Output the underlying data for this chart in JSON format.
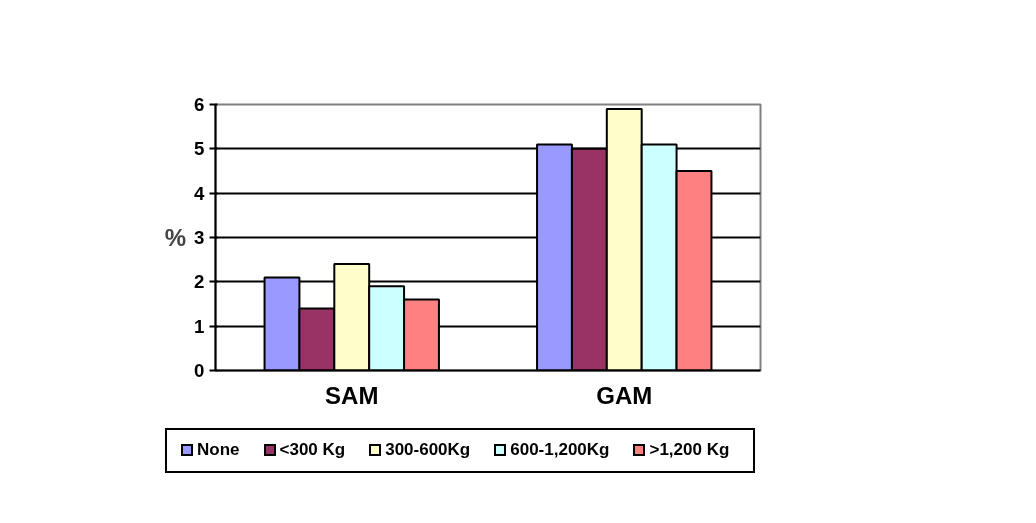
{
  "chart_data": {
    "type": "bar",
    "categories": [
      "SAM",
      "GAM"
    ],
    "ylabel": "%",
    "ylim": [
      0,
      6
    ],
    "yticks": [
      0,
      1,
      2,
      3,
      4,
      5,
      6
    ],
    "grid": "y",
    "legend": "bottom",
    "series": [
      {
        "name": "None",
        "color": "#9999ff",
        "values": [
          2.1,
          5.1
        ]
      },
      {
        "name": "<300 Kg",
        "color": "#993366",
        "values": [
          1.4,
          5.0
        ]
      },
      {
        "name": "300-600Kg",
        "color": "#ffffcc",
        "values": [
          2.4,
          5.9
        ]
      },
      {
        "name": "600-1,200Kg",
        "color": "#ccffff",
        "values": [
          1.9,
          5.1
        ]
      },
      {
        "name": ">1,200 Kg",
        "color": "#ff8080",
        "values": [
          1.6,
          4.5
        ]
      }
    ]
  }
}
